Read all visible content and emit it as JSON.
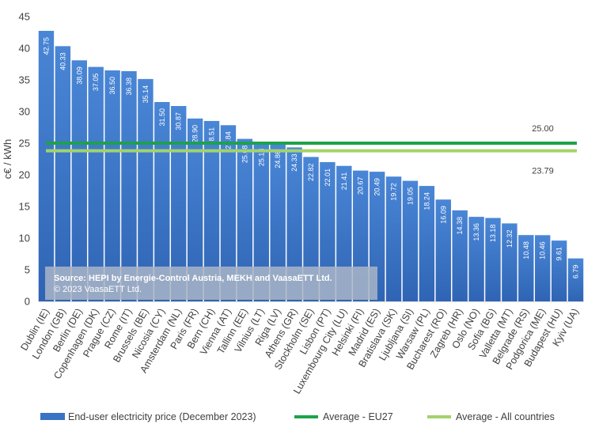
{
  "chart_data": {
    "type": "bar",
    "ylabel": "c€ / kWh",
    "ylim": [
      0,
      45
    ],
    "yticks": [
      0,
      5,
      10,
      15,
      20,
      25,
      30,
      35,
      40,
      45
    ],
    "categories": [
      "Dublin (IE)",
      "London (GB)",
      "Berlin (DE)",
      "Copenhagen (DK)",
      "Prague (CZ)",
      "Rome (IT)",
      "Brussels (BE)",
      "Nicosia (CY)",
      "Amsterdam (NL)",
      "Paris (FR)",
      "Bern (CH)",
      "Vienna (AT)",
      "Tallinn (EE)",
      "Vilnius (LT)",
      "Riga (LV)",
      "Athens (GR)",
      "Stockholm (SE)",
      "Lisbon (PT)",
      "Luxembourg City (LU)",
      "Helsinki (FI)",
      "Madrid (ES)",
      "Bratislava (SK)",
      "Ljubljana (SI)",
      "Warsaw (PL)",
      "Bucharest (RO)",
      "Zagreb (HR)",
      "Oslo (NO)",
      "Sofia (BG)",
      "Valletta (MT)",
      "Belgrade (RS)",
      "Podgorica (ME)",
      "Budapest (HU)",
      "Kyiv (UA)"
    ],
    "series": [
      {
        "name": "End-user electricity price (December 2023)",
        "color": "#3a72c4",
        "values": [
          42.75,
          40.33,
          38.09,
          37.05,
          36.5,
          36.38,
          35.14,
          31.5,
          30.87,
          28.9,
          28.51,
          27.84,
          25.68,
          25.18,
          24.86,
          24.33,
          22.82,
          22.01,
          21.41,
          20.67,
          20.49,
          19.72,
          19.05,
          18.24,
          16.09,
          14.38,
          13.36,
          13.18,
          12.32,
          10.48,
          10.46,
          9.61,
          6.79
        ],
        "labels": [
          "42.75",
          "40.33",
          "38.09",
          "37.05",
          "36.50",
          "36.38",
          "35.14",
          "31.50",
          "30.87",
          "28.90",
          "28.51",
          "27.84",
          "25.68",
          "25.18",
          "24.86",
          "24.33",
          "22.82",
          "22.01",
          "21.41",
          "20.67",
          "20.49",
          "19.72",
          "19.05",
          "18.24",
          "16.09",
          "14.38",
          "13.36",
          "13.18",
          "12.32",
          "10.48",
          "10.46",
          "9.61",
          "6.79"
        ]
      }
    ],
    "reference_lines": [
      {
        "name": "Average - EU27",
        "value": 25.0,
        "label": "25.00",
        "color": "#1ea24a"
      },
      {
        "name": "Average - All countries",
        "value": 23.79,
        "label": "23.79",
        "color": "#a3d36a"
      }
    ],
    "legend_position": "bottom",
    "grid": false
  },
  "source_box": {
    "line1": "Source: HEPI by Energie-Control Austria, MEKH and VaasaETT Ltd.",
    "line2": "© 2023 VaasaETT Ltd."
  }
}
